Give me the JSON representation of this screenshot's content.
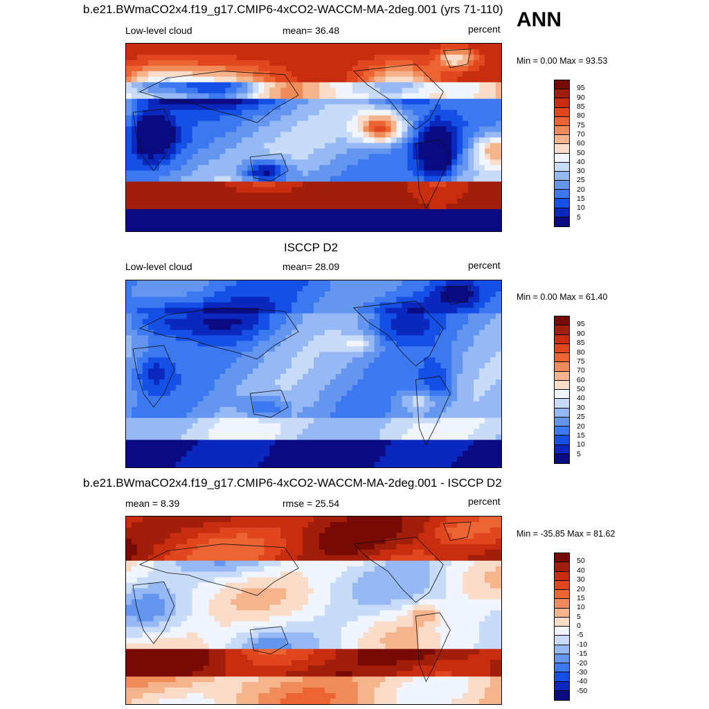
{
  "season": "ANN",
  "panels": [
    {
      "title": "b.e21.BWmaCO2x4.f19_g17.CMIP6-4xCO2-WACCM-MA-2deg.001 (yrs 71-110)",
      "left": "Low-level cloud",
      "center": "mean=  36.48",
      "right": "percent",
      "minmax": "Min =   0.00 Max =  93.53",
      "colorbar": [
        "95",
        "90",
        "85",
        "80",
        "75",
        "70",
        "60",
        "50",
        "40",
        "30",
        "25",
        "20",
        "15",
        "10",
        "5"
      ],
      "field": "model"
    },
    {
      "title": "ISCCP D2",
      "left": "Low-level cloud",
      "center": "mean=  28.09",
      "right": "percent",
      "minmax": "Min =   0.00 Max =  61.40",
      "colorbar": [
        "95",
        "90",
        "85",
        "80",
        "75",
        "70",
        "60",
        "50",
        "40",
        "30",
        "25",
        "20",
        "15",
        "10",
        "5"
      ],
      "field": "obs"
    },
    {
      "title": "b.e21.BWmaCO2x4.f19_g17.CMIP6-4xCO2-WACCM-MA-2deg.001 - ISCCP D2",
      "left": "mean =   8.39",
      "center": "rmse =  25.54",
      "right": "percent",
      "minmax": "Min = -35.85 Max =  81.62",
      "colorbar": [
        "50",
        "40",
        "30",
        "20",
        "15",
        "10",
        "5",
        "0",
        "-5",
        "-10",
        "-15",
        "-20",
        "-30",
        "-40",
        "-50"
      ],
      "field": "diff"
    }
  ],
  "palette": [
    "#0a0a82",
    "#0a28be",
    "#1450e6",
    "#3c78f0",
    "#6496f0",
    "#96b9f5",
    "#c8dcfa",
    "#f0f5ff",
    "#fadcc8",
    "#f5b48c",
    "#f08c5a",
    "#eb6432",
    "#e1461e",
    "#c82d0f",
    "#a01e0a",
    "#780a05"
  ]
}
